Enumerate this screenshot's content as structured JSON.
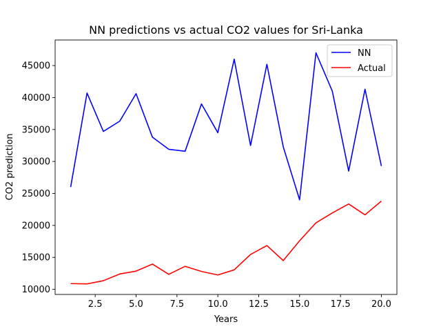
{
  "chart_data": {
    "type": "line",
    "title": "NN predictions vs actual CO2 values for Sri-Lanka",
    "xlabel": "Years",
    "ylabel": "CO2 prediction",
    "xlim": [
      0.05,
      20.95
    ],
    "ylim": [
      9200,
      49000
    ],
    "xticks": [
      2.5,
      5.0,
      7.5,
      10.0,
      12.5,
      15.0,
      17.5,
      20.0
    ],
    "xtick_labels": [
      "2.5",
      "5.0",
      "7.5",
      "10.0",
      "12.5",
      "15.0",
      "17.5",
      "20.0"
    ],
    "yticks": [
      10000,
      15000,
      20000,
      25000,
      30000,
      35000,
      40000,
      45000
    ],
    "ytick_labels": [
      "10000",
      "15000",
      "20000",
      "25000",
      "30000",
      "35000",
      "40000",
      "45000"
    ],
    "grid": false,
    "legend_position": "top-right",
    "x": [
      1,
      2,
      3,
      4,
      5,
      6,
      7,
      8,
      9,
      10,
      11,
      12,
      13,
      14,
      15,
      16,
      17,
      18,
      19,
      20
    ],
    "series": [
      {
        "name": "NN",
        "color": "#0000ff",
        "values": [
          26000,
          40700,
          34700,
          36300,
          40600,
          33800,
          31900,
          31600,
          39000,
          34500,
          46000,
          32500,
          45200,
          32300,
          24000,
          47000,
          41000,
          28500,
          41300,
          29300
        ]
      },
      {
        "name": "Actual",
        "color": "#ff0000",
        "values": [
          10900,
          10850,
          11350,
          12400,
          12850,
          13950,
          12350,
          13600,
          12800,
          12250,
          13050,
          15450,
          16850,
          14500,
          17600,
          20400,
          21950,
          23350,
          21650,
          23800
        ]
      }
    ]
  }
}
